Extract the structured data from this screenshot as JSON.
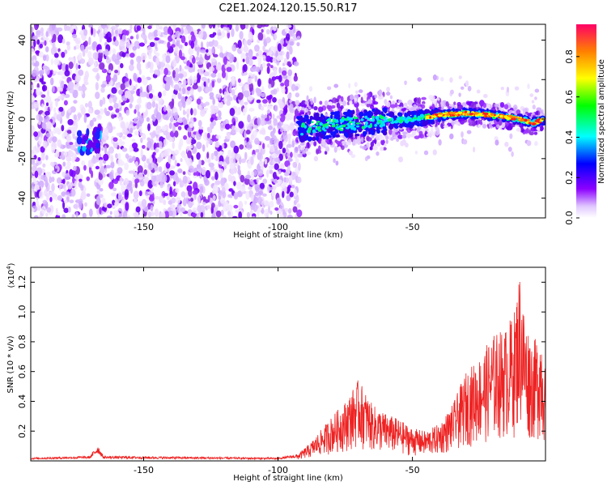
{
  "title": "C2E1.2024.120.15.50.R17",
  "chart_data": [
    {
      "type": "heatmap",
      "xlabel": "Height of straight line (km)",
      "ylabel": "Frequency (Hz)",
      "xlim": [
        -192,
        -0.5
      ],
      "ylim": [
        -50,
        48
      ],
      "xticks": [
        -150,
        -100,
        -50
      ],
      "yticks": [
        40,
        20,
        0,
        -20,
        -40
      ],
      "colorbar": {
        "label": "Normalized spectral amplitude",
        "range": [
          0,
          0.96
        ],
        "ticks": [
          "0.0",
          "0.2",
          "0.4",
          "0.6",
          "0.8"
        ],
        "colormap": "rainbow"
      },
      "ridge": [
        {
          "x": -93,
          "y": -5
        },
        {
          "x": -80,
          "y": -3
        },
        {
          "x": -70,
          "y": -2
        },
        {
          "x": -60,
          "y": -1
        },
        {
          "x": -50,
          "y": 0
        },
        {
          "x": -40,
          "y": 2
        },
        {
          "x": -30,
          "y": 3
        },
        {
          "x": -20,
          "y": 2
        },
        {
          "x": -10,
          "y": 0
        },
        {
          "x": -5,
          "y": -2
        },
        {
          "x": -1,
          "y": 0
        }
      ],
      "noise_extent": {
        "x": [
          -192,
          -92
        ],
        "y": [
          -50,
          48
        ]
      },
      "hotspot": {
        "x": -170,
        "y": -10
      }
    },
    {
      "type": "line",
      "xlabel": "Height of straight line (km)",
      "ylabel": "SNR (10 * v/v)",
      "multiplier": "(x10",
      "multiplier_exp": "4",
      "multiplier_close": ")",
      "xlim": [
        -192,
        -0.5
      ],
      "ylim": [
        0,
        1.3
      ],
      "xticks": [
        -150,
        -100,
        -50
      ],
      "yticks": [
        "0.2",
        "0.4",
        "0.6",
        "0.8",
        "1.0",
        "1.2"
      ],
      "color": "#ee2222",
      "envelope": [
        {
          "x": -192,
          "y": 0.02
        },
        {
          "x": -170,
          "y": 0.03
        },
        {
          "x": -167,
          "y": 0.1
        },
        {
          "x": -165,
          "y": 0.03
        },
        {
          "x": -100,
          "y": 0.02
        },
        {
          "x": -93,
          "y": 0.04
        },
        {
          "x": -88,
          "y": 0.12
        },
        {
          "x": -80,
          "y": 0.3
        },
        {
          "x": -75,
          "y": 0.4
        },
        {
          "x": -70,
          "y": 0.55
        },
        {
          "x": -65,
          "y": 0.38
        },
        {
          "x": -60,
          "y": 0.32
        },
        {
          "x": -55,
          "y": 0.28
        },
        {
          "x": -50,
          "y": 0.22
        },
        {
          "x": -45,
          "y": 0.2
        },
        {
          "x": -40,
          "y": 0.25
        },
        {
          "x": -35,
          "y": 0.38
        },
        {
          "x": -30,
          "y": 0.6
        },
        {
          "x": -25,
          "y": 0.7
        },
        {
          "x": -20,
          "y": 0.85
        },
        {
          "x": -15,
          "y": 0.9
        },
        {
          "x": -12,
          "y": 1.02
        },
        {
          "x": -10,
          "y": 1.3
        },
        {
          "x": -8,
          "y": 0.95
        },
        {
          "x": -5,
          "y": 0.8
        },
        {
          "x": -2,
          "y": 0.9
        },
        {
          "x": -0.5,
          "y": 0.6
        }
      ]
    }
  ]
}
